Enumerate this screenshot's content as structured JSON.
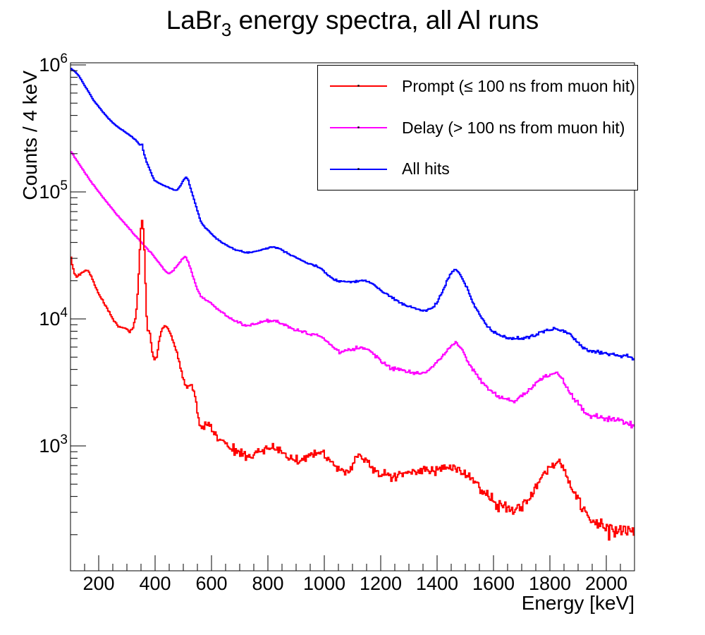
{
  "title": {
    "prefix": "LaBr",
    "subscript": "3",
    "rest": " energy spectra, all Al runs"
  },
  "chart_data": {
    "type": "line",
    "style": "histogram-steps",
    "title": "LaBr3 energy spectra, all Al runs",
    "xlabel": "Energy [keV]",
    "ylabel": "Counts / 4 keV",
    "x_range": [
      100,
      2100
    ],
    "y_range": [
      105,
      1040000
    ],
    "y_scale": "log",
    "grid": "off",
    "bin_width_keV": 4,
    "x_major_ticks": [
      200,
      400,
      600,
      800,
      1000,
      1200,
      1400,
      1600,
      1800,
      2000
    ],
    "x_tick_labels": [
      "200",
      "400",
      "600",
      "800",
      "1000",
      "1200",
      "1400",
      "1600",
      "1800",
      "2000"
    ],
    "x_minor_tick_step": 50,
    "y_major_tick_exponents": [
      3,
      4,
      5,
      6
    ],
    "legend": {
      "position": "top-right",
      "entries": [
        {
          "label": "Prompt (≤ 100 ns from muon hit)",
          "color": "#ff0000"
        },
        {
          "label": "Delay (> 100 ns from muon hit)",
          "color": "#ff00ff"
        },
        {
          "label": "All hits",
          "color": "#0000ff"
        }
      ]
    },
    "series": [
      {
        "name": "All hits",
        "color": "#0000ff",
        "draw_order": 1,
        "anchors": [
          [
            100,
            940000
          ],
          [
            115,
            890000
          ],
          [
            130,
            820000
          ],
          [
            148,
            700000
          ],
          [
            165,
            610000
          ],
          [
            182,
            525000
          ],
          [
            200,
            470000
          ],
          [
            215,
            425000
          ],
          [
            232,
            385000
          ],
          [
            250,
            350000
          ],
          [
            270,
            322000
          ],
          [
            290,
            300000
          ],
          [
            312,
            277000
          ],
          [
            330,
            258000
          ],
          [
            342,
            240000
          ],
          [
            348,
            232000
          ],
          [
            353,
            243000
          ],
          [
            360,
            203000
          ],
          [
            372,
            167000
          ],
          [
            385,
            143000
          ],
          [
            397,
            124000
          ],
          [
            415,
            117000
          ],
          [
            432,
            112000
          ],
          [
            450,
            108000
          ],
          [
            465,
            104000
          ],
          [
            477,
            103000
          ],
          [
            488,
            110000
          ],
          [
            499,
            122000
          ],
          [
            509,
            131000
          ],
          [
            517,
            125000
          ],
          [
            527,
            105000
          ],
          [
            537,
            89000
          ],
          [
            548,
            74000
          ],
          [
            560,
            60000
          ],
          [
            572,
            54000
          ],
          [
            588,
            50000
          ],
          [
            602,
            46000
          ],
          [
            625,
            42000
          ],
          [
            650,
            38500
          ],
          [
            680,
            35200
          ],
          [
            710,
            33800
          ],
          [
            740,
            33300
          ],
          [
            770,
            34800
          ],
          [
            800,
            36200
          ],
          [
            820,
            37000
          ],
          [
            845,
            35500
          ],
          [
            870,
            33000
          ],
          [
            900,
            30500
          ],
          [
            935,
            27800
          ],
          [
            965,
            26200
          ],
          [
            990,
            25000
          ],
          [
            1010,
            22500
          ],
          [
            1030,
            20700
          ],
          [
            1050,
            20000
          ],
          [
            1075,
            19600
          ],
          [
            1100,
            19700
          ],
          [
            1125,
            20000
          ],
          [
            1145,
            20000
          ],
          [
            1170,
            19000
          ],
          [
            1200,
            16800
          ],
          [
            1230,
            15200
          ],
          [
            1260,
            13800
          ],
          [
            1290,
            12800
          ],
          [
            1320,
            12100
          ],
          [
            1350,
            11600
          ],
          [
            1375,
            11800
          ],
          [
            1400,
            13500
          ],
          [
            1420,
            16500
          ],
          [
            1440,
            21000
          ],
          [
            1455,
            23800
          ],
          [
            1465,
            24500
          ],
          [
            1478,
            23000
          ],
          [
            1495,
            19500
          ],
          [
            1512,
            16300
          ],
          [
            1530,
            13000
          ],
          [
            1550,
            11000
          ],
          [
            1565,
            9600
          ],
          [
            1580,
            8600
          ],
          [
            1600,
            7900
          ],
          [
            1625,
            7400
          ],
          [
            1650,
            7100
          ],
          [
            1675,
            7000
          ],
          [
            1700,
            7000
          ],
          [
            1725,
            7200
          ],
          [
            1750,
            7500
          ],
          [
            1775,
            7900
          ],
          [
            1800,
            8200
          ],
          [
            1822,
            8400
          ],
          [
            1845,
            8100
          ],
          [
            1870,
            7600
          ],
          [
            1895,
            6700
          ],
          [
            1915,
            6000
          ],
          [
            1935,
            5700
          ],
          [
            1960,
            5550
          ],
          [
            1990,
            5400
          ],
          [
            2020,
            5300
          ],
          [
            2050,
            5150
          ],
          [
            2075,
            5050
          ],
          [
            2100,
            4900
          ]
        ]
      },
      {
        "name": "Delay",
        "color": "#ff00ff",
        "draw_order": 2,
        "anchors": [
          [
            100,
            210000
          ],
          [
            120,
            180000
          ],
          [
            140,
            155000
          ],
          [
            160,
            132000
          ],
          [
            180,
            115000
          ],
          [
            200,
            100000
          ],
          [
            220,
            88000
          ],
          [
            245,
            75000
          ],
          [
            270,
            64000
          ],
          [
            300,
            54000
          ],
          [
            330,
            45000
          ],
          [
            360,
            38000
          ],
          [
            390,
            32500
          ],
          [
            420,
            26500
          ],
          [
            438,
            23500
          ],
          [
            450,
            22700
          ],
          [
            465,
            24000
          ],
          [
            480,
            26500
          ],
          [
            495,
            29500
          ],
          [
            508,
            31000
          ],
          [
            520,
            27500
          ],
          [
            535,
            21500
          ],
          [
            550,
            17000
          ],
          [
            565,
            14800
          ],
          [
            580,
            14000
          ],
          [
            600,
            13200
          ],
          [
            630,
            11500
          ],
          [
            660,
            10300
          ],
          [
            695,
            9300
          ],
          [
            728,
            8800
          ],
          [
            760,
            9300
          ],
          [
            790,
            9600
          ],
          [
            820,
            9700
          ],
          [
            850,
            9200
          ],
          [
            880,
            8500
          ],
          [
            910,
            8100
          ],
          [
            945,
            7700
          ],
          [
            975,
            7400
          ],
          [
            1005,
            6800
          ],
          [
            1030,
            6000
          ],
          [
            1055,
            5500
          ],
          [
            1080,
            5600
          ],
          [
            1105,
            5800
          ],
          [
            1125,
            5900
          ],
          [
            1145,
            5850
          ],
          [
            1170,
            5400
          ],
          [
            1200,
            4700
          ],
          [
            1240,
            4100
          ],
          [
            1280,
            3900
          ],
          [
            1320,
            3750
          ],
          [
            1355,
            3800
          ],
          [
            1385,
            4200
          ],
          [
            1410,
            4800
          ],
          [
            1435,
            5600
          ],
          [
            1455,
            6300
          ],
          [
            1468,
            6500
          ],
          [
            1485,
            5900
          ],
          [
            1505,
            4800
          ],
          [
            1530,
            4000
          ],
          [
            1555,
            3250
          ],
          [
            1580,
            2800
          ],
          [
            1610,
            2500
          ],
          [
            1645,
            2320
          ],
          [
            1672,
            2260
          ],
          [
            1700,
            2450
          ],
          [
            1730,
            2800
          ],
          [
            1760,
            3250
          ],
          [
            1790,
            3550
          ],
          [
            1812,
            3680
          ],
          [
            1825,
            3700
          ],
          [
            1845,
            3350
          ],
          [
            1865,
            2800
          ],
          [
            1885,
            2350
          ],
          [
            1905,
            2050
          ],
          [
            1925,
            1820
          ],
          [
            1950,
            1720
          ],
          [
            1980,
            1680
          ],
          [
            2010,
            1600
          ],
          [
            2040,
            1560
          ],
          [
            2070,
            1520
          ],
          [
            2100,
            1460
          ]
        ]
      },
      {
        "name": "Prompt",
        "color": "#ff0000",
        "draw_order": 3,
        "anchors": [
          [
            100,
            33000
          ],
          [
            106,
            27000
          ],
          [
            113,
            23000
          ],
          [
            122,
            21500
          ],
          [
            134,
            22500
          ],
          [
            150,
            24000
          ],
          [
            163,
            24200
          ],
          [
            176,
            21000
          ],
          [
            190,
            17500
          ],
          [
            205,
            15000
          ],
          [
            225,
            12500
          ],
          [
            245,
            10500
          ],
          [
            262,
            9200
          ],
          [
            278,
            8600
          ],
          [
            296,
            8300
          ],
          [
            310,
            8000
          ],
          [
            322,
            8600
          ],
          [
            332,
            10500
          ],
          [
            340,
            18000
          ],
          [
            346,
            35000
          ],
          [
            352,
            62000
          ],
          [
            357,
            56000
          ],
          [
            363,
            32000
          ],
          [
            368,
            13500
          ],
          [
            372,
            8300
          ],
          [
            381,
            7900
          ],
          [
            389,
            5600
          ],
          [
            397,
            4800
          ],
          [
            405,
            4900
          ],
          [
            412,
            6200
          ],
          [
            420,
            7800
          ],
          [
            428,
            8600
          ],
          [
            434,
            8800
          ],
          [
            444,
            8600
          ],
          [
            456,
            7500
          ],
          [
            470,
            6000
          ],
          [
            482,
            5000
          ],
          [
            494,
            3800
          ],
          [
            506,
            3100
          ],
          [
            516,
            2950
          ],
          [
            530,
            3000
          ],
          [
            542,
            2500
          ],
          [
            552,
            1700
          ],
          [
            562,
            1380
          ],
          [
            575,
            1400
          ],
          [
            588,
            1500
          ],
          [
            602,
            1320
          ],
          [
            620,
            1200
          ],
          [
            640,
            1080
          ],
          [
            665,
            980
          ],
          [
            690,
            915
          ],
          [
            715,
            855
          ],
          [
            735,
            830
          ],
          [
            760,
            870
          ],
          [
            790,
            930
          ],
          [
            815,
            955
          ],
          [
            840,
            915
          ],
          [
            865,
            855
          ],
          [
            890,
            790
          ],
          [
            908,
            765
          ],
          [
            930,
            810
          ],
          [
            955,
            865
          ],
          [
            975,
            890
          ],
          [
            995,
            880
          ],
          [
            1015,
            790
          ],
          [
            1035,
            715
          ],
          [
            1055,
            645
          ],
          [
            1072,
            605
          ],
          [
            1090,
            655
          ],
          [
            1110,
            760
          ],
          [
            1128,
            845
          ],
          [
            1145,
            815
          ],
          [
            1165,
            700
          ],
          [
            1185,
            640
          ],
          [
            1205,
            605
          ],
          [
            1230,
            580
          ],
          [
            1255,
            585
          ],
          [
            1285,
            600
          ],
          [
            1315,
            625
          ],
          [
            1345,
            640
          ],
          [
            1375,
            650
          ],
          [
            1405,
            660
          ],
          [
            1435,
            672
          ],
          [
            1465,
            665
          ],
          [
            1490,
            640
          ],
          [
            1520,
            560
          ],
          [
            1550,
            470
          ],
          [
            1580,
            400
          ],
          [
            1610,
            350
          ],
          [
            1645,
            320
          ],
          [
            1675,
            310
          ],
          [
            1700,
            330
          ],
          [
            1725,
            375
          ],
          [
            1750,
            460
          ],
          [
            1775,
            590
          ],
          [
            1800,
            690
          ],
          [
            1820,
            745
          ],
          [
            1840,
            700
          ],
          [
            1865,
            550
          ],
          [
            1890,
            435
          ],
          [
            1910,
            340
          ],
          [
            1930,
            285
          ],
          [
            1950,
            250
          ],
          [
            1975,
            235
          ],
          [
            2000,
            225
          ],
          [
            2030,
            220
          ],
          [
            2060,
            215
          ],
          [
            2100,
            205
          ]
        ]
      }
    ]
  },
  "colors": {
    "axis": "#000000",
    "background": "#ffffff"
  }
}
